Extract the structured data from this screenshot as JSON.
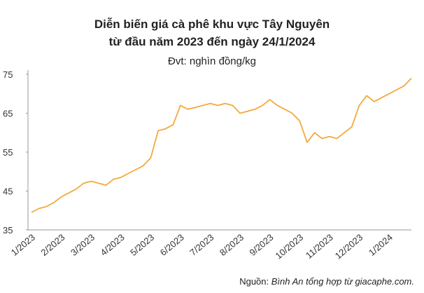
{
  "chart_data": {
    "type": "line",
    "title": [
      "Diễn biến giá cà phê khu vực Tây Nguyên",
      "từ đầu năm 2023 đến ngày 24/1/2024"
    ],
    "subtitle": "Đvt: nghìn đồng/kg",
    "source_label": "Nguồn:",
    "source": "Bình An tổng hợp từ giacaphe.com.",
    "categories": [
      "1/2023",
      null,
      null,
      null,
      "2/2023",
      null,
      null,
      null,
      "3/2023",
      null,
      null,
      null,
      "4/2023",
      null,
      null,
      null,
      "5/2023",
      null,
      null,
      null,
      "6/2023",
      null,
      null,
      null,
      "7/2023",
      null,
      null,
      null,
      "8/2023",
      null,
      null,
      null,
      "9/2023",
      null,
      null,
      null,
      "10/2023",
      null,
      null,
      null,
      "11/2023",
      null,
      null,
      null,
      "12/2023",
      null,
      null,
      null,
      "1/2024",
      null,
      null,
      null
    ],
    "series": [
      {
        "name": "Giá cà phê",
        "color": "#f2aa3c",
        "values": [
          39.5,
          40.5,
          41,
          42,
          43.5,
          44.5,
          45.5,
          47,
          47.5,
          47,
          46.5,
          48,
          48.5,
          49.5,
          50.5,
          51.5,
          53.5,
          60.5,
          61,
          62,
          67,
          66,
          66.5,
          67,
          67.5,
          67,
          67.5,
          67,
          65,
          65.5,
          66,
          67,
          68.5,
          67,
          66,
          65,
          63,
          57.5,
          60,
          58.5,
          59,
          58.5,
          60,
          61.5,
          67,
          69.5,
          68,
          69,
          70,
          71,
          72,
          74
        ]
      }
    ],
    "ylim": [
      35,
      75
    ],
    "yticks": [
      35,
      45,
      55,
      65,
      75
    ],
    "grid": false
  }
}
